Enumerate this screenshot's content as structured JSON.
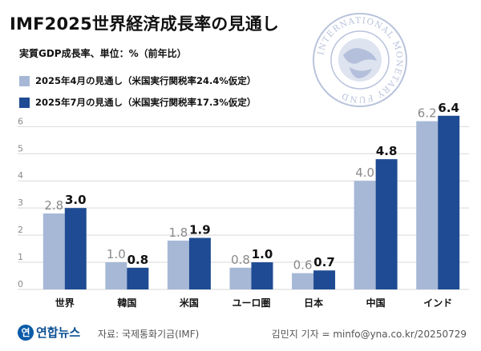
{
  "header": {
    "title": "IMF2025世界経済成長率の見通し",
    "subtitle": "実質GDP成長率、単位：%（前年比）"
  },
  "colors": {
    "april": "#a6b8d6",
    "july": "#1e4b93",
    "grid": "#d9d9d9",
    "axis_text": "#8a8a8a",
    "label_april": "#8a8a8a",
    "label_july": "#111111"
  },
  "chart_data": {
    "type": "bar",
    "categories": [
      "世界",
      "韓国",
      "米国",
      "ユーロ圏",
      "日本",
      "中国",
      "インド"
    ],
    "series": [
      {
        "name": "2025年4月の見通し（米国実行関税率24.4%仮定）",
        "values": [
          2.8,
          1.0,
          1.8,
          0.8,
          0.6,
          4.0,
          6.2
        ]
      },
      {
        "name": "2025年7月の見通し（米国実行関税率17.3%仮定）",
        "values": [
          3.0,
          0.8,
          1.9,
          1.0,
          0.7,
          4.8,
          6.4
        ]
      }
    ],
    "data_labels": [
      [
        "2.8",
        "1.0",
        "1.8",
        "0.8",
        "0.6",
        "4.0",
        "6.2"
      ],
      [
        "3.0",
        "0.8",
        "1.9",
        "1.0",
        "0.7",
        "4.8",
        "6.4"
      ]
    ],
    "yticks": [
      0,
      1,
      2,
      3,
      4,
      5,
      6
    ],
    "ylim": [
      0,
      6.6
    ],
    "grid": true,
    "legend": "top-left"
  },
  "seal": {
    "text": "INTERNATIONAL MONETARY FUND"
  },
  "footer": {
    "logo_mark": "연",
    "logo_text": "연합뉴스",
    "source": "자료: 국제통화기금(IMF)",
    "credit": "김민지 기자 = minfo@yna.co.kr/20250729"
  }
}
